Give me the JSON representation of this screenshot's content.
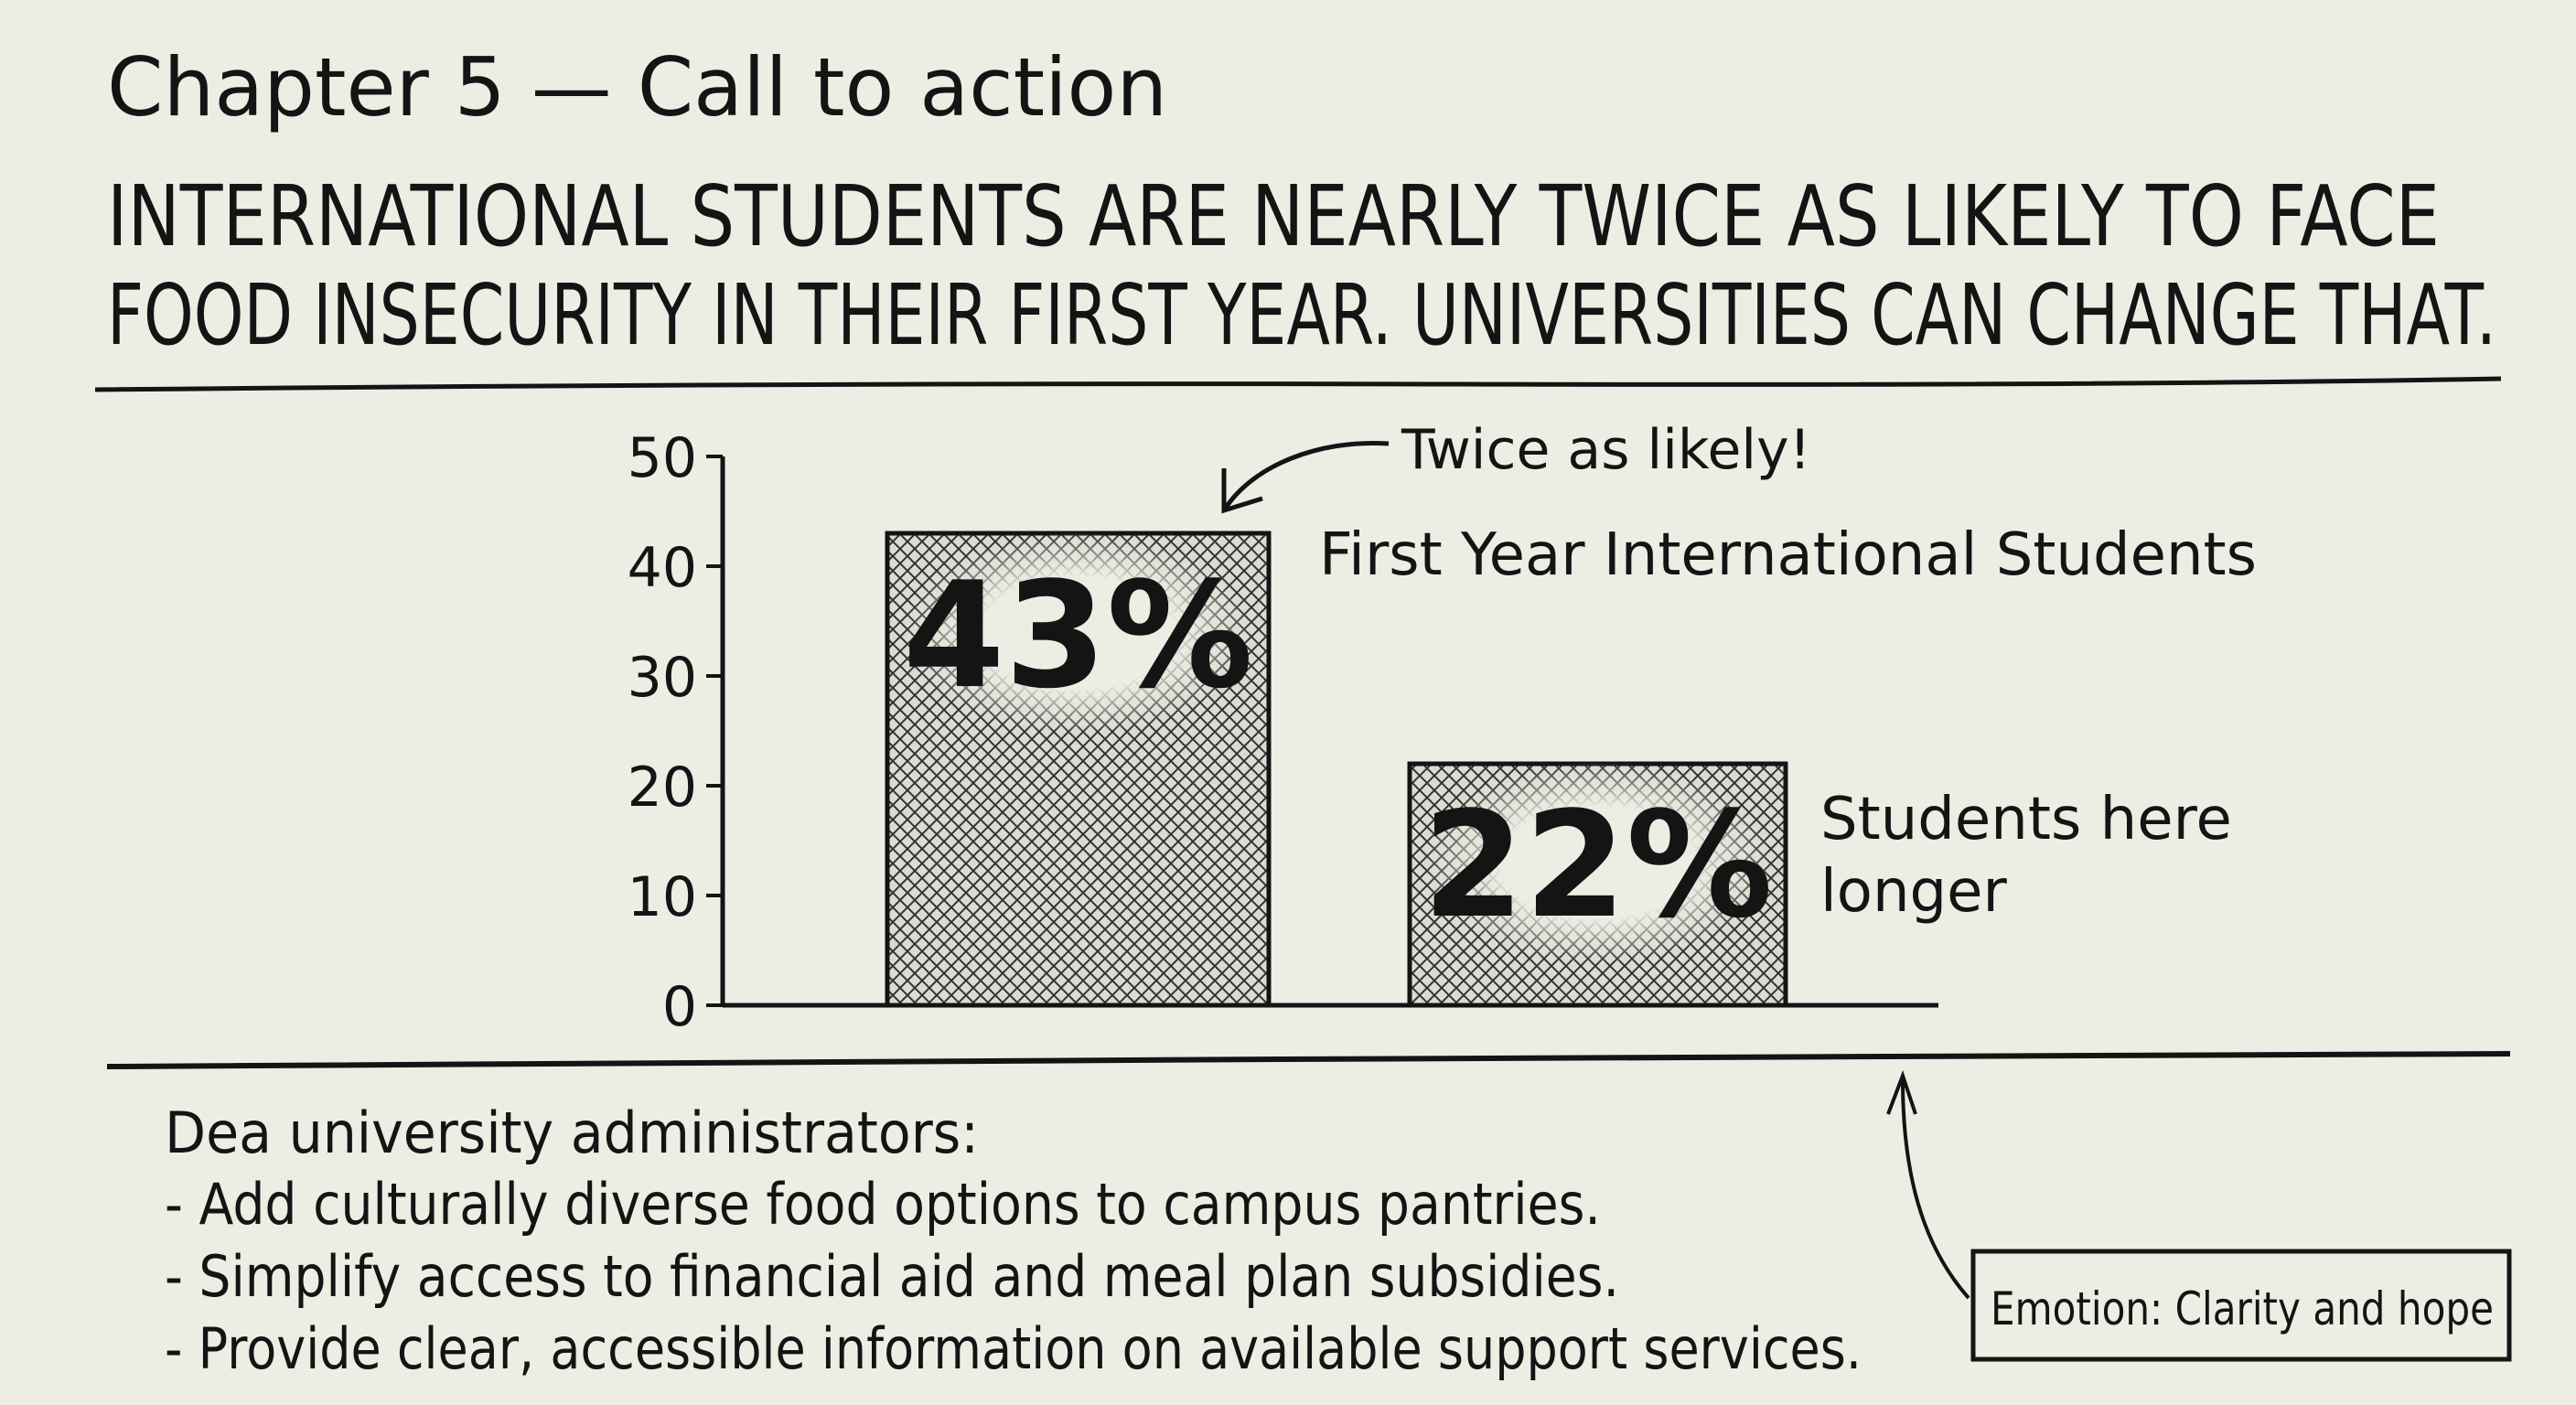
{
  "header": {
    "chapter_title": "Chapter 5 — Call to action",
    "headline_lines": [
      "INTERNATIONAL STUDENTS ARE NEARLY TWICE AS LIKELY TO FACE",
      "FOOD INSECURITY IN THEIR FIRST YEAR. UNIVERSITIES CAN CHANGE THAT."
    ]
  },
  "chart_data": {
    "type": "bar",
    "categories": [
      "First Year International Students",
      "Students here longer"
    ],
    "values": [
      43,
      22
    ],
    "data_labels": [
      "43%",
      "22%"
    ],
    "category_label_lines": [
      [
        "First Year International Students"
      ],
      [
        "Students here",
        "longer"
      ]
    ],
    "yticks": [
      "0",
      "10",
      "20",
      "30",
      "40",
      "50"
    ],
    "ylim": [
      0,
      50
    ],
    "annotation": "Twice as likely!",
    "bar_fill": "crosshatch",
    "grid": false
  },
  "message": {
    "salutation": "Dea university administrators:",
    "items": [
      "- Add culturally diverse food options to campus pantries.",
      "- Simplify access to financial aid and meal plan subsidies.",
      "- Provide clear, accessible information on available support services."
    ]
  },
  "emotion_note": "Emotion: Clarity and hope",
  "colors": {
    "background": "#eeede4",
    "ink": "#141414"
  }
}
